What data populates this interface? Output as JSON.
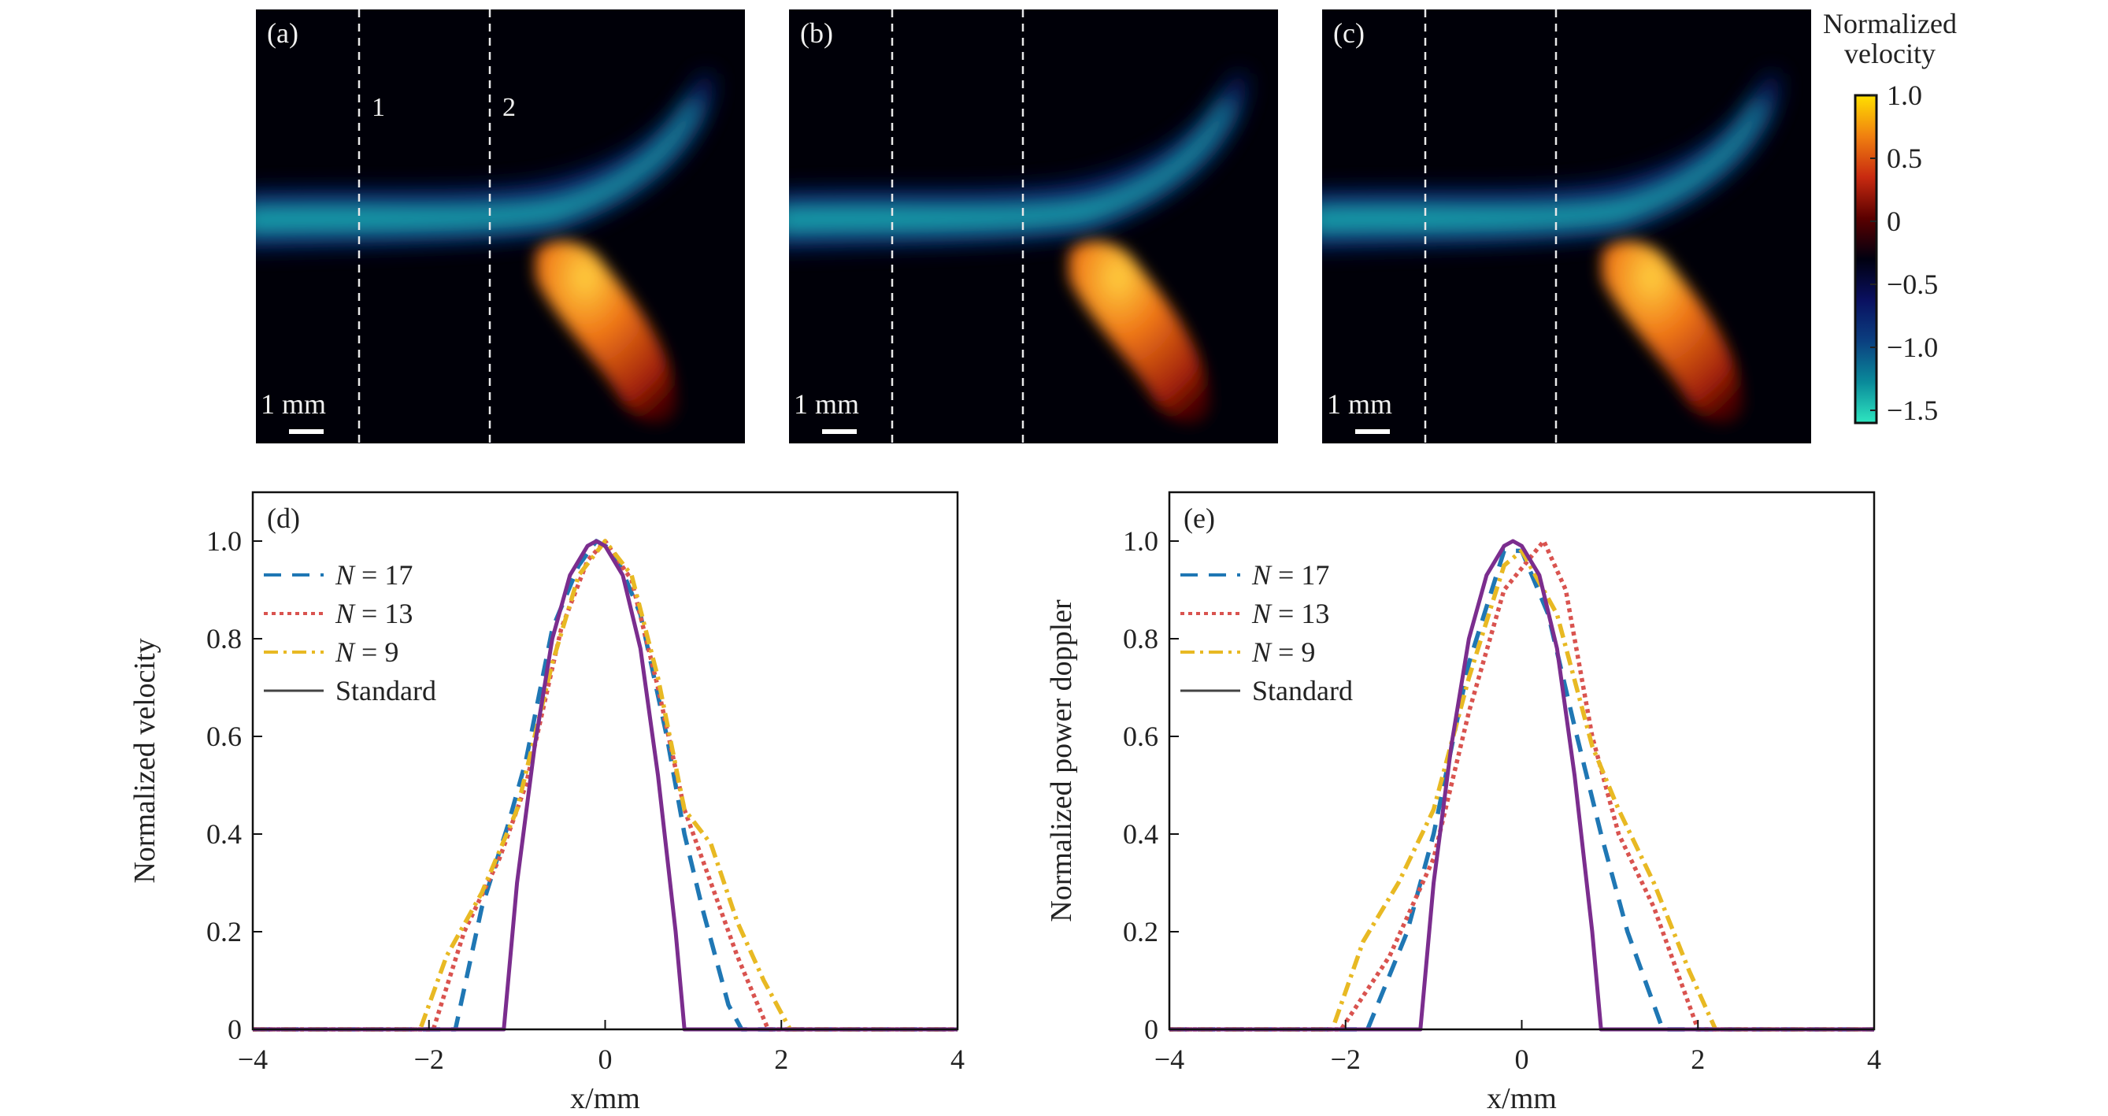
{
  "images": [
    {
      "label": "(a)",
      "lines": [
        "1",
        "2"
      ],
      "scale_bar": "1 mm"
    },
    {
      "label": "(b)",
      "lines": [
        "",
        ""
      ],
      "scale_bar": "1 mm"
    },
    {
      "label": "(c)",
      "lines": [
        "",
        ""
      ],
      "scale_bar": "1 mm"
    }
  ],
  "colorbar": {
    "title": [
      "Normalized",
      "velocity"
    ],
    "ticks": [
      "1.0",
      "0.5",
      "0",
      "−0.5",
      "−1.0",
      "−1.5"
    ],
    "tick_values": [
      1.0,
      0.5,
      0,
      -0.5,
      -1.0,
      -1.5
    ],
    "range": [
      -1.6,
      1.0
    ],
    "colors": [
      "#2ee6c0",
      "#0a8a9a",
      "#0b3f80",
      "#0a1060",
      "#000010",
      "#5a0000",
      "#c82a10",
      "#f08010",
      "#ffe000"
    ]
  },
  "chart_data": [
    {
      "type": "line",
      "panel_label": "(d)",
      "xlabel": "x/mm",
      "ylabel": "Normalized velocity",
      "xlim": [
        -4,
        4
      ],
      "ylim": [
        0,
        1.1
      ],
      "xticks": [
        -4,
        -2,
        0,
        2,
        4
      ],
      "xtick_labels": [
        "−4",
        "−2",
        "0",
        "2",
        "4"
      ],
      "yticks": [
        0,
        0.2,
        0.4,
        0.6,
        0.8,
        1.0
      ],
      "ytick_labels": [
        "0",
        "0.2",
        "0.4",
        "0.6",
        "0.8",
        "1.0"
      ],
      "legend": "top-left",
      "series": [
        {
          "name": "N = 17",
          "color": "#1f77b4",
          "style": "dashed",
          "x": [
            -4,
            -1.7,
            -1.4,
            -1.1,
            -0.9,
            -0.6,
            -0.3,
            -0.1,
            0.1,
            0.4,
            0.7,
            0.9,
            1.1,
            1.4,
            1.55,
            4
          ],
          "y": [
            0,
            0,
            0.25,
            0.42,
            0.55,
            0.82,
            0.95,
            1.0,
            0.98,
            0.85,
            0.6,
            0.4,
            0.25,
            0.05,
            0,
            0
          ]
        },
        {
          "name": "N = 13",
          "color": "#d9534f",
          "style": "dotted",
          "x": [
            -4,
            -1.95,
            -1.6,
            -1.2,
            -0.9,
            -0.5,
            -0.2,
            0,
            0.3,
            0.6,
            0.9,
            1.2,
            1.5,
            1.85,
            4
          ],
          "y": [
            0,
            0,
            0.2,
            0.35,
            0.5,
            0.82,
            0.96,
            1.0,
            0.92,
            0.7,
            0.45,
            0.3,
            0.15,
            0,
            0
          ]
        },
        {
          "name": "N = 9",
          "color": "#e8b923",
          "style": "dashdot",
          "x": [
            -4,
            -2.1,
            -1.8,
            -1.4,
            -1.0,
            -0.6,
            -0.3,
            0,
            0.3,
            0.6,
            0.9,
            1.2,
            1.5,
            1.8,
            2.1,
            4
          ],
          "y": [
            0,
            0,
            0.15,
            0.28,
            0.45,
            0.75,
            0.93,
            1.0,
            0.93,
            0.72,
            0.45,
            0.38,
            0.22,
            0.1,
            0,
            0
          ]
        },
        {
          "name": "Standard",
          "color": "#7b2d8e",
          "legend_color": "#444444",
          "style": "solid",
          "x": [
            -4,
            -1.15,
            -1.0,
            -0.8,
            -0.6,
            -0.4,
            -0.2,
            -0.1,
            0,
            0.2,
            0.4,
            0.6,
            0.8,
            0.9,
            4
          ],
          "y": [
            0,
            0,
            0.3,
            0.58,
            0.8,
            0.93,
            0.99,
            1.0,
            0.99,
            0.93,
            0.78,
            0.52,
            0.2,
            0,
            0
          ]
        }
      ]
    },
    {
      "type": "line",
      "panel_label": "(e)",
      "xlabel": "x/mm",
      "ylabel": "Normalized power doppler",
      "xlim": [
        -4,
        4
      ],
      "ylim": [
        0,
        1.1
      ],
      "xticks": [
        -4,
        -2,
        0,
        2,
        4
      ],
      "xtick_labels": [
        "−4",
        "−2",
        "0",
        "2",
        "4"
      ],
      "yticks": [
        0,
        0.2,
        0.4,
        0.6,
        0.8,
        1.0
      ],
      "ytick_labels": [
        "0",
        "0.2",
        "0.4",
        "0.6",
        "0.8",
        "1.0"
      ],
      "legend": "top-left",
      "series": [
        {
          "name": "N = 17",
          "color": "#1f77b4",
          "style": "dashed",
          "x": [
            -4,
            -1.75,
            -1.3,
            -1.0,
            -0.6,
            -0.2,
            0,
            0.3,
            0.6,
            0.9,
            1.2,
            1.6,
            4
          ],
          "y": [
            0,
            0,
            0.2,
            0.4,
            0.75,
            0.98,
            0.98,
            0.85,
            0.62,
            0.4,
            0.2,
            0,
            0
          ]
        },
        {
          "name": "N = 13",
          "color": "#d9534f",
          "style": "dotted",
          "x": [
            -4,
            -2.05,
            -1.5,
            -1.0,
            -0.6,
            -0.2,
            0.25,
            0.5,
            0.8,
            1.1,
            1.5,
            2.0,
            4
          ],
          "y": [
            0,
            0,
            0.15,
            0.35,
            0.65,
            0.9,
            1.0,
            0.9,
            0.6,
            0.4,
            0.25,
            0,
            0
          ]
        },
        {
          "name": "N = 9",
          "color": "#e8b923",
          "style": "dashdot",
          "x": [
            -4,
            -2.15,
            -1.8,
            -1.4,
            -1.0,
            -0.6,
            -0.2,
            0,
            0.4,
            0.8,
            1.1,
            1.5,
            1.9,
            2.2,
            4
          ],
          "y": [
            0,
            0,
            0.18,
            0.3,
            0.45,
            0.72,
            0.95,
            0.98,
            0.85,
            0.58,
            0.45,
            0.3,
            0.12,
            0,
            0
          ]
        },
        {
          "name": "Standard",
          "color": "#7b2d8e",
          "legend_color": "#444444",
          "style": "solid",
          "x": [
            -4,
            -1.15,
            -1.0,
            -0.8,
            -0.6,
            -0.4,
            -0.2,
            -0.1,
            0,
            0.2,
            0.4,
            0.6,
            0.8,
            0.9,
            4
          ],
          "y": [
            0,
            0,
            0.3,
            0.58,
            0.8,
            0.93,
            0.99,
            1.0,
            0.99,
            0.93,
            0.78,
            0.52,
            0.2,
            0,
            0
          ]
        }
      ]
    }
  ]
}
